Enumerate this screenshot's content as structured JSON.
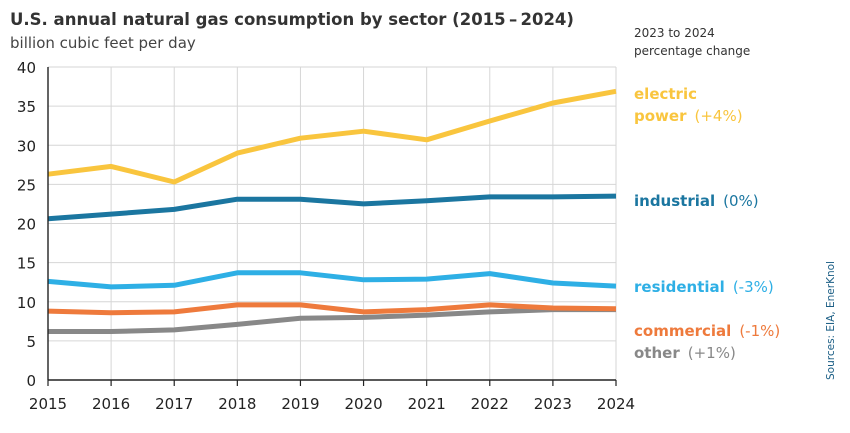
{
  "chart_data": {
    "type": "line",
    "title": "U.S. annual natural gas consumption by sector (2015 – 2024)",
    "subtitle": "billion cubic feet per day",
    "legend_header": [
      "2023 to 2024",
      "percentage change"
    ],
    "source": "Sources: EIA, EnerKnol",
    "x": [
      2015,
      2016,
      2017,
      2018,
      2019,
      2020,
      2021,
      2022,
      2023,
      2024
    ],
    "xlabels": [
      "2015",
      "2016",
      "2017",
      "2018",
      "2019",
      "2020",
      "2021",
      "2022",
      "2023",
      "2024"
    ],
    "ylim": [
      0,
      40
    ],
    "yticks": [
      0,
      5,
      10,
      15,
      20,
      25,
      30,
      35,
      40
    ],
    "grid": true,
    "series": [
      {
        "name": "electric power",
        "label_lines": [
          "electric",
          "power"
        ],
        "change": "(+4%)",
        "color": "#f9c53e",
        "values": [
          26.3,
          27.3,
          25.3,
          29.0,
          30.9,
          31.8,
          30.7,
          33.1,
          35.4,
          36.9
        ]
      },
      {
        "name": "industrial",
        "label_lines": [
          "industrial"
        ],
        "change": "(0%)",
        "color": "#1b76a0",
        "values": [
          20.6,
          21.2,
          21.8,
          23.1,
          23.1,
          22.5,
          22.9,
          23.4,
          23.4,
          23.5
        ]
      },
      {
        "name": "residential",
        "label_lines": [
          "residential"
        ],
        "change": "(-3%)",
        "color": "#2eafe5",
        "values": [
          12.6,
          11.9,
          12.1,
          13.7,
          13.7,
          12.8,
          12.9,
          13.6,
          12.4,
          12.0
        ]
      },
      {
        "name": "commercial",
        "label_lines": [
          "commercial"
        ],
        "change": "(-1%)",
        "color": "#ee7a3c",
        "values": [
          8.8,
          8.6,
          8.7,
          9.6,
          9.6,
          8.7,
          9.0,
          9.6,
          9.2,
          9.1
        ]
      },
      {
        "name": "other",
        "label_lines": [
          "other"
        ],
        "change": "(+1%)",
        "color": "#888888",
        "values": [
          6.2,
          6.2,
          6.4,
          7.1,
          7.9,
          8.0,
          8.3,
          8.7,
          9.0,
          9.0
        ]
      }
    ]
  }
}
